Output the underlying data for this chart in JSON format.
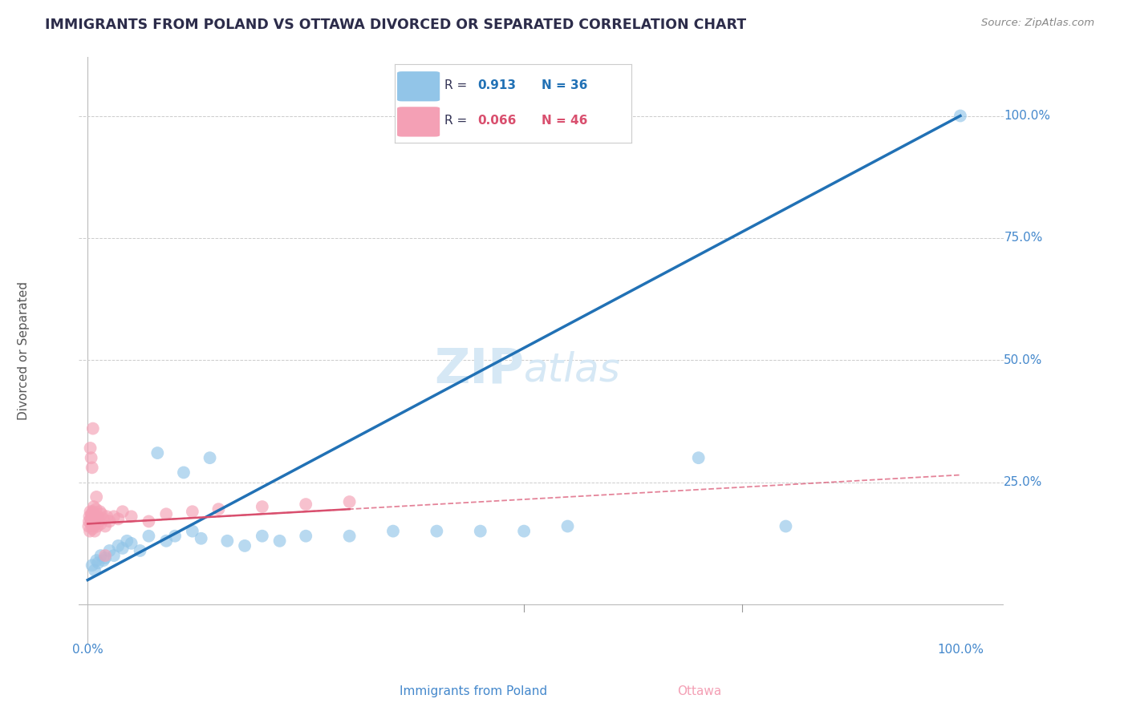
{
  "title": "IMMIGRANTS FROM POLAND VS OTTAWA DIVORCED OR SEPARATED CORRELATION CHART",
  "source_text": "Source: ZipAtlas.com",
  "xlabel_blue": "Immigrants from Poland",
  "xlabel_pink": "Ottawa",
  "ylabel": "Divorced or Separated",
  "blue_R": 0.913,
  "blue_N": 36,
  "pink_R": 0.066,
  "pink_N": 46,
  "blue_color": "#92c5e8",
  "pink_color": "#f4a0b5",
  "blue_line_color": "#2171b5",
  "pink_line_color": "#d94f6e",
  "watermark_color": "#d6e8f5",
  "background_color": "#ffffff",
  "grid_color": "#cccccc",
  "title_color": "#2c2c4a",
  "axis_label_color": "#5577aa",
  "tick_label_color": "#4488cc",
  "blue_scatter_x": [
    0.5,
    0.8,
    1.0,
    1.2,
    1.5,
    1.8,
    2.0,
    2.5,
    3.0,
    3.5,
    4.0,
    4.5,
    5.0,
    6.0,
    7.0,
    8.0,
    9.0,
    10.0,
    11.0,
    12.0,
    13.0,
    14.0,
    16.0,
    18.0,
    20.0,
    22.0,
    25.0,
    30.0,
    35.0,
    40.0,
    45.0,
    50.0,
    55.0,
    70.0,
    80.0,
    100.0
  ],
  "blue_scatter_y": [
    8.0,
    7.0,
    9.0,
    8.5,
    10.0,
    9.0,
    9.5,
    11.0,
    10.0,
    12.0,
    11.5,
    13.0,
    12.5,
    11.0,
    14.0,
    31.0,
    13.0,
    14.0,
    27.0,
    15.0,
    13.5,
    30.0,
    13.0,
    12.0,
    14.0,
    13.0,
    14.0,
    14.0,
    15.0,
    15.0,
    15.0,
    15.0,
    16.0,
    30.0,
    16.0,
    100.0
  ],
  "pink_scatter_x": [
    0.1,
    0.15,
    0.2,
    0.25,
    0.3,
    0.35,
    0.4,
    0.45,
    0.5,
    0.55,
    0.6,
    0.65,
    0.7,
    0.75,
    0.8,
    0.85,
    0.9,
    0.95,
    1.0,
    1.1,
    1.2,
    1.3,
    1.4,
    1.5,
    1.6,
    1.8,
    2.0,
    2.2,
    2.5,
    3.0,
    3.5,
    4.0,
    5.0,
    7.0,
    9.0,
    12.0,
    15.0,
    20.0,
    25.0,
    30.0,
    0.3,
    0.4,
    0.5,
    0.6,
    1.0,
    2.0
  ],
  "pink_scatter_y": [
    16.0,
    17.0,
    18.0,
    15.0,
    19.0,
    17.5,
    16.5,
    18.5,
    17.0,
    15.5,
    19.0,
    16.0,
    20.0,
    17.0,
    15.0,
    18.0,
    16.5,
    19.5,
    17.0,
    16.0,
    18.0,
    17.0,
    19.0,
    16.5,
    18.5,
    17.5,
    16.0,
    18.0,
    17.0,
    18.0,
    17.5,
    19.0,
    18.0,
    17.0,
    18.5,
    19.0,
    19.5,
    20.0,
    20.5,
    21.0,
    32.0,
    30.0,
    28.0,
    36.0,
    22.0,
    10.0
  ],
  "blue_trend_x0": 0.0,
  "blue_trend_y0": 5.0,
  "blue_trend_x1": 100.0,
  "blue_trend_y1": 100.0,
  "pink_trend_x0": 0.0,
  "pink_trend_y0": 16.5,
  "pink_trend_x1": 100.0,
  "pink_trend_y1": 26.5,
  "pink_solid_x0": 0.0,
  "pink_solid_y0": 16.5,
  "pink_solid_x1": 30.0,
  "pink_solid_y1": 19.5,
  "xlim": [
    -1,
    105
  ],
  "ylim": [
    -8,
    112
  ],
  "ytick_vals": [
    0,
    25,
    50,
    75,
    100
  ],
  "ytick_labels": [
    "",
    "25.0%",
    "50.0%",
    "75.0%",
    "100.0%"
  ],
  "figsize": [
    14.06,
    8.92
  ],
  "dpi": 100
}
